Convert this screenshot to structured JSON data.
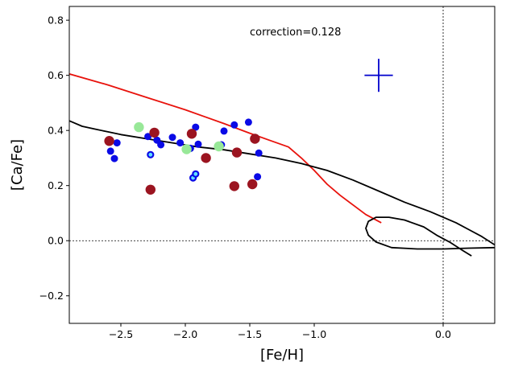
{
  "chart_data": {
    "type": "scatter",
    "title": "",
    "xlabel": "[Fe/H]",
    "ylabel": "[Ca/Fe]",
    "xlim": [
      -2.9,
      0.4
    ],
    "ylim": [
      -0.3,
      0.85
    ],
    "xticks": [
      -2.5,
      -2.0,
      -1.5,
      -1.0,
      0.0
    ],
    "xtick_labels": [
      "−2.5",
      "−2.0",
      "−1.5",
      "−1.0",
      "0.0"
    ],
    "yticks": [
      -0.2,
      0.0,
      0.2,
      0.4,
      0.6,
      0.8
    ],
    "ytick_labels": [
      "−0.2",
      "0.0",
      "0.2",
      "0.4",
      "0.6",
      "0.8"
    ],
    "grid": false,
    "annotation": "correction=0.128",
    "reference_lines": {
      "horizontal_y": 0.0,
      "vertical_x": 0.0,
      "style": "dotted"
    },
    "error_cross": {
      "x": -0.5,
      "y": 0.6,
      "x_err": 0.11,
      "y_err": 0.06,
      "color": "#0000cc"
    },
    "colors": {
      "red_model": "#e8120c",
      "black_model": "#000000",
      "blue": "#0a0ae6",
      "dark_red": "#9b1420",
      "light_green": "#98e898",
      "cyan": "#5fe0ff"
    },
    "lines": [
      {
        "color": "red",
        "points": [
          [
            -2.9,
            0.605
          ],
          [
            -2.6,
            0.565
          ],
          [
            -2.3,
            0.52
          ],
          [
            -2.0,
            0.475
          ],
          [
            -1.7,
            0.425
          ],
          [
            -1.5,
            0.39
          ],
          [
            -1.35,
            0.365
          ],
          [
            -1.2,
            0.34
          ],
          [
            -1.1,
            0.3
          ],
          [
            -1.0,
            0.255
          ],
          [
            -0.9,
            0.205
          ],
          [
            -0.8,
            0.165
          ],
          [
            -0.7,
            0.13
          ],
          [
            -0.6,
            0.095
          ],
          [
            -0.48,
            0.065
          ]
        ]
      },
      {
        "color": "black",
        "points": [
          [
            -2.9,
            0.435
          ],
          [
            -2.8,
            0.415
          ],
          [
            -2.7,
            0.405
          ],
          [
            -2.6,
            0.395
          ],
          [
            -2.5,
            0.385
          ],
          [
            -2.3,
            0.37
          ],
          [
            -2.1,
            0.355
          ],
          [
            -1.9,
            0.34
          ],
          [
            -1.7,
            0.33
          ],
          [
            -1.5,
            0.315
          ],
          [
            -1.3,
            0.3
          ],
          [
            -1.1,
            0.28
          ],
          [
            -0.9,
            0.255
          ],
          [
            -0.7,
            0.22
          ],
          [
            -0.5,
            0.18
          ],
          [
            -0.3,
            0.14
          ],
          [
            -0.1,
            0.105
          ],
          [
            0.0,
            0.085
          ],
          [
            0.1,
            0.065
          ],
          [
            0.2,
            0.04
          ],
          [
            0.3,
            0.015
          ],
          [
            0.4,
            -0.015
          ]
        ]
      },
      {
        "color": "black",
        "points": [
          [
            0.4,
            -0.025
          ],
          [
            0.2,
            -0.027
          ],
          [
            0.0,
            -0.03
          ],
          [
            -0.2,
            -0.03
          ],
          [
            -0.4,
            -0.025
          ],
          [
            -0.52,
            -0.005
          ],
          [
            -0.58,
            0.02
          ],
          [
            -0.6,
            0.045
          ],
          [
            -0.58,
            0.07
          ],
          [
            -0.52,
            0.085
          ],
          [
            -0.42,
            0.085
          ],
          [
            -0.3,
            0.075
          ],
          [
            -0.15,
            0.05
          ],
          [
            -0.05,
            0.02
          ],
          [
            0.05,
            -0.005
          ],
          [
            0.15,
            -0.035
          ],
          [
            0.22,
            -0.055
          ]
        ]
      }
    ],
    "series": [
      {
        "marker": "blue-circle",
        "points": [
          [
            -2.53,
            0.355
          ],
          [
            -2.58,
            0.325
          ],
          [
            -2.55,
            0.298
          ],
          [
            -2.29,
            0.378
          ],
          [
            -2.22,
            0.365
          ],
          [
            -2.19,
            0.348
          ],
          [
            -2.1,
            0.375
          ],
          [
            -2.04,
            0.355
          ],
          [
            -1.96,
            0.335
          ],
          [
            -1.92,
            0.412
          ],
          [
            -1.9,
            0.35
          ],
          [
            -1.7,
            0.398
          ],
          [
            -1.62,
            0.42
          ],
          [
            -1.43,
            0.318
          ],
          [
            -1.44,
            0.232
          ],
          [
            -1.51,
            0.43
          ],
          [
            -1.72,
            0.348
          ]
        ]
      },
      {
        "marker": "cyan-ring",
        "points": [
          [
            -2.27,
            0.312
          ],
          [
            -1.94,
            0.228
          ],
          [
            -1.92,
            0.242
          ]
        ]
      },
      {
        "marker": "dark-red-circle",
        "points": [
          [
            -2.59,
            0.362
          ],
          [
            -2.24,
            0.392
          ],
          [
            -1.95,
            0.388
          ],
          [
            -1.6,
            0.32
          ],
          [
            -1.46,
            0.37
          ],
          [
            -1.84,
            0.3
          ],
          [
            -2.27,
            0.185
          ],
          [
            -1.62,
            0.198
          ],
          [
            -1.48,
            0.205
          ]
        ]
      },
      {
        "marker": "light-green-circle",
        "points": [
          [
            -2.36,
            0.412
          ],
          [
            -1.99,
            0.332
          ],
          [
            -1.74,
            0.342
          ]
        ]
      }
    ]
  }
}
